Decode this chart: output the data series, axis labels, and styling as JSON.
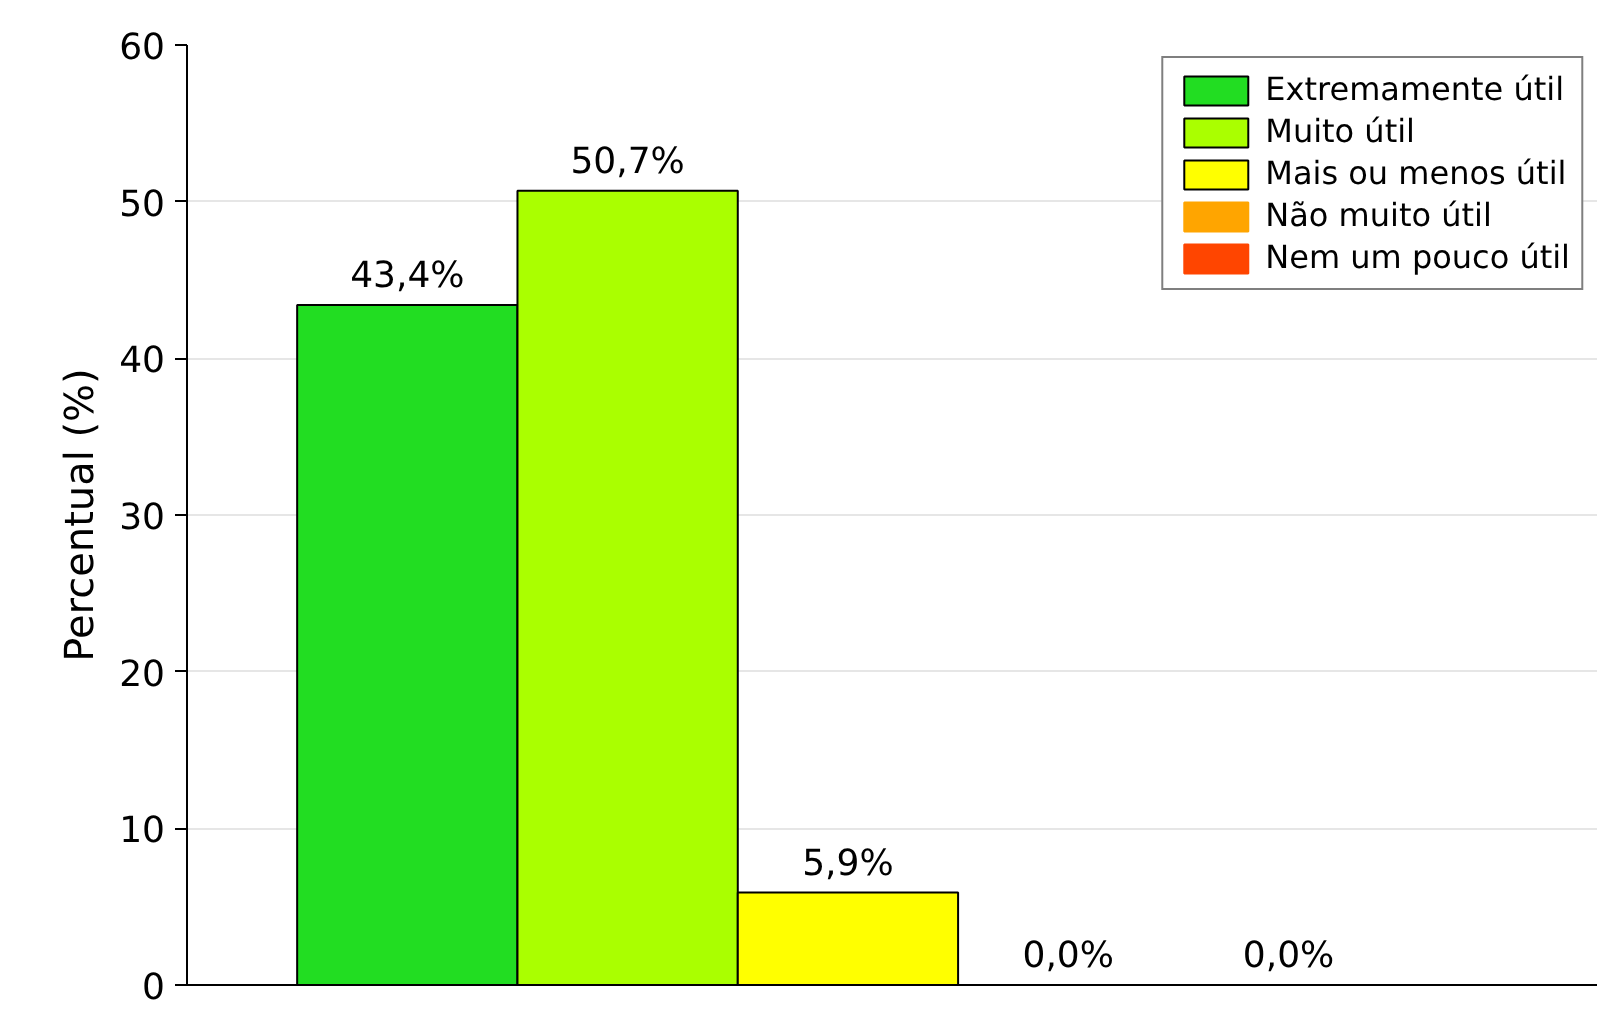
{
  "chart_data": {
    "type": "bar",
    "ylabel": "Percentual (%)",
    "categories": [
      null
    ],
    "series": [
      {
        "name": "Extremamente útil",
        "color": "#22dd22",
        "values": [
          43.4
        ],
        "value_labels": [
          "43,4%"
        ]
      },
      {
        "name": "Muito útil",
        "color": "#aaff00",
        "values": [
          50.7
        ],
        "value_labels": [
          "50,7%"
        ]
      },
      {
        "name": "Mais ou menos útil",
        "color": "#ffff00",
        "values": [
          5.9
        ],
        "value_labels": [
          "5,9%"
        ]
      },
      {
        "name": "Não muito útil",
        "color": "#ffa500",
        "values": [
          0.0
        ],
        "value_labels": [
          "0,0%"
        ]
      },
      {
        "name": "Nem um pouco útil",
        "color": "#ff4500",
        "values": [
          0.0
        ],
        "value_labels": [
          "0,0%"
        ]
      }
    ],
    "ylim": [
      0,
      60
    ],
    "yticks": [
      0,
      10,
      20,
      30,
      40,
      50,
      60
    ],
    "grid": "y",
    "legend": "top right",
    "tick_labels": "y"
  }
}
